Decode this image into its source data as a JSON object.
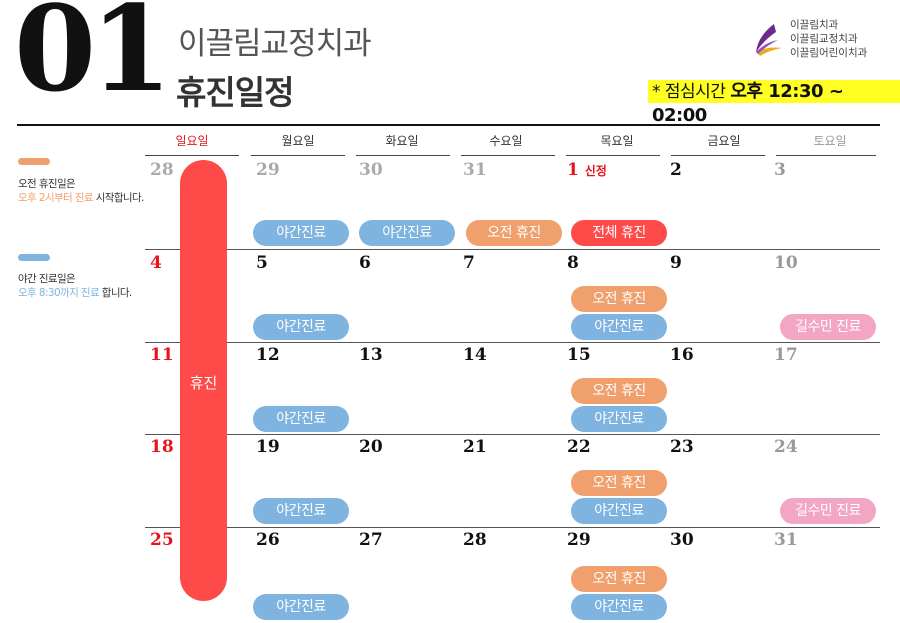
{
  "header": {
    "big_number": "01",
    "clinic_name": "이끌림교정치과",
    "title": "휴진일정",
    "brands": [
      "이끌림치과",
      "이끌림교정치과",
      "이끌림어린이치과"
    ],
    "lunch_label": "* 점심시간",
    "lunch_time": "오후 12:30 ~ 02:00"
  },
  "colors": {
    "night": "#7eb4df",
    "morning_off": "#f0a06c",
    "closed": "#ff4a4a",
    "special": "#f3a6c3",
    "sunday": "#e8141c"
  },
  "legend": [
    {
      "line1": "오전 휴진일은",
      "line2_hl": "오후 2시부터 진료",
      "line2_rest": " 시작합니다."
    },
    {
      "line1": "야간 진료일은",
      "line2_hl": "오후 8:30까지 진료",
      "line2_rest": " 합니다."
    }
  ],
  "day_headers": [
    "일요일",
    "월요일",
    "화요일",
    "수요일",
    "목요일",
    "금요일",
    "토요일"
  ],
  "weeks": [
    [
      "28",
      "29",
      "30",
      "31",
      "1",
      "2",
      "3"
    ],
    [
      "4",
      "5",
      "6",
      "7",
      "8",
      "9",
      "10"
    ],
    [
      "11",
      "12",
      "13",
      "14",
      "15",
      "16",
      "17"
    ],
    [
      "18",
      "19",
      "20",
      "21",
      "22",
      "23",
      "24"
    ],
    [
      "25",
      "26",
      "27",
      "28",
      "29",
      "30",
      "31"
    ]
  ],
  "new_year_note": "신정",
  "closed_label": "휴진",
  "pill_labels": {
    "night": "야간진료",
    "morning_off": "오전 휴진",
    "full_off": "전체 휴진",
    "special": "길수민 진료"
  }
}
